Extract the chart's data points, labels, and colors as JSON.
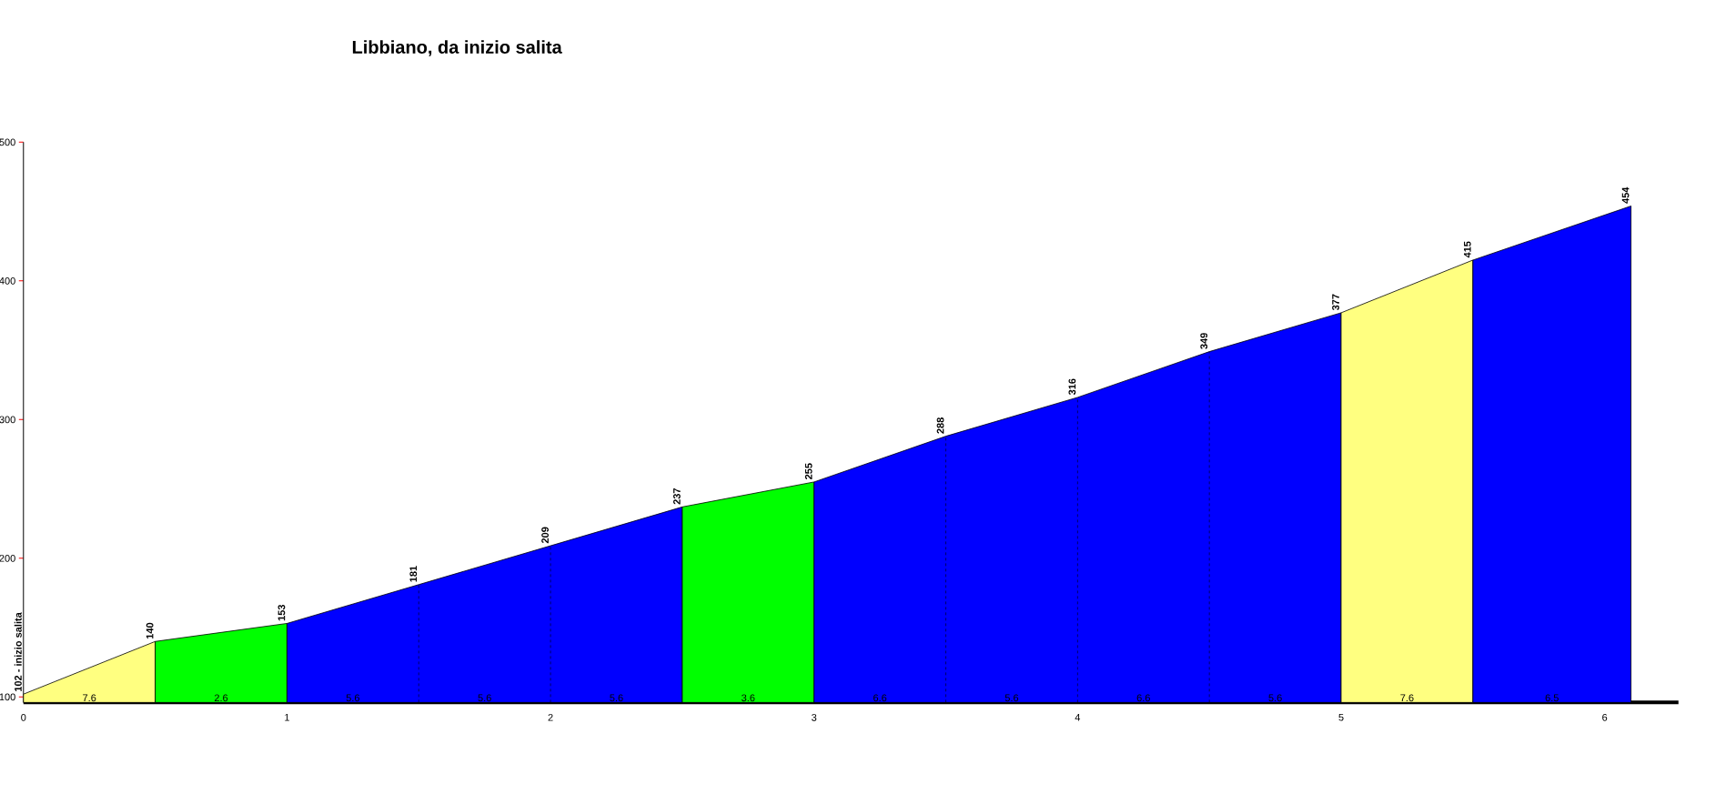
{
  "chart_data": {
    "type": "area",
    "title": "Libbiano, da inizio salita",
    "xlim": [
      0,
      6.28
    ],
    "xticks": [
      0,
      1,
      2,
      3,
      4,
      5,
      6
    ],
    "ylim": [
      96,
      500
    ],
    "yticks": [
      100,
      200,
      300,
      400,
      500
    ],
    "grid": false,
    "series": [
      {
        "color": "#ffff80",
        "x": [
          0,
          0.5
        ],
        "values": [
          102,
          140
        ],
        "value_labels": [
          "102 - inizio salita",
          null
        ]
      },
      {
        "color": "#00ff00",
        "x": [
          0.5,
          1
        ],
        "values": [
          140,
          153
        ],
        "value_labels": [
          "140",
          null
        ]
      },
      {
        "color": "#0000ff",
        "x": [
          1,
          1.5,
          2,
          2.5
        ],
        "values": [
          153,
          181,
          209,
          237
        ],
        "value_labels": [
          "153",
          "181",
          "209",
          null
        ]
      },
      {
        "color": "#00ff00",
        "x": [
          2.5,
          3
        ],
        "values": [
          237,
          255
        ],
        "value_labels": [
          "237",
          null
        ]
      },
      {
        "color": "#0000ff",
        "x": [
          3,
          3.5,
          4,
          4.5,
          5
        ],
        "values": [
          255,
          288,
          316,
          349,
          377
        ],
        "value_labels": [
          "255",
          "288",
          "316",
          "349",
          null
        ]
      },
      {
        "color": "#ffff80",
        "x": [
          5,
          5.5
        ],
        "values": [
          377,
          415
        ],
        "value_labels": [
          "377",
          null
        ]
      },
      {
        "color": "#0000ff",
        "x": [
          5.5,
          6.1
        ],
        "values": [
          415,
          454
        ],
        "value_labels": [
          "415",
          "454"
        ]
      }
    ],
    "annotations": [
      "7.6",
      "2.6",
      "5.6",
      "5.6",
      "5.6",
      "3.6",
      "6.6",
      "5.6",
      "6.6",
      "5.6",
      "7.6",
      "6.5"
    ]
  }
}
